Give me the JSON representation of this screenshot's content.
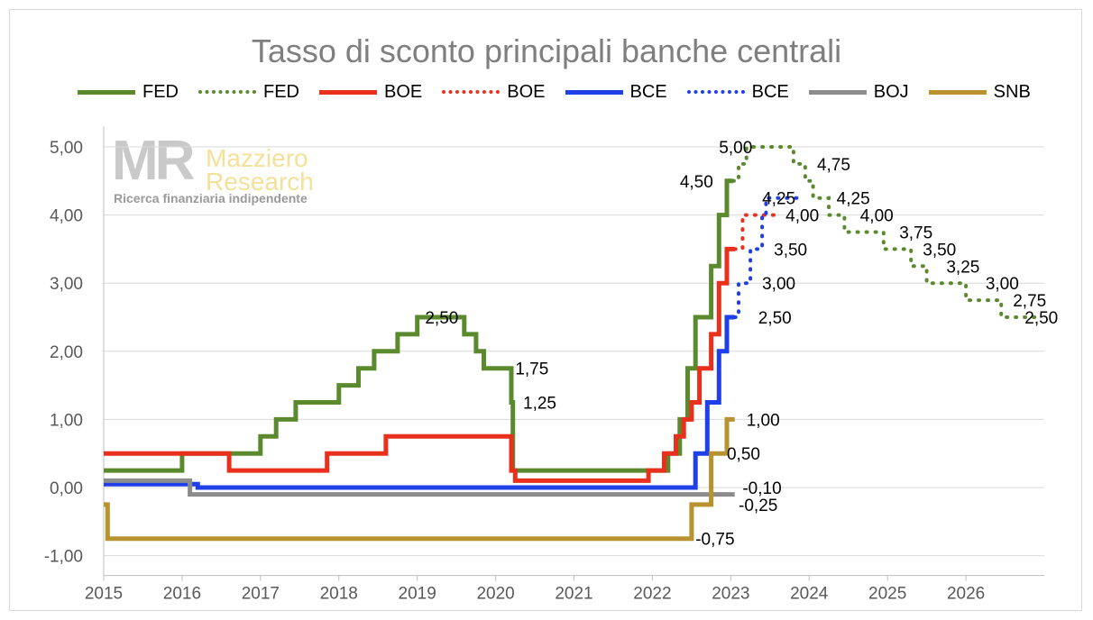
{
  "chart_data": {
    "type": "line",
    "title": "Tasso di sconto principali banche centrali",
    "xlabel": "",
    "ylabel": "",
    "xlim": [
      2015,
      2027
    ],
    "ylim": [
      -1,
      5.5
    ],
    "x_ticks": [
      "2015",
      "2016",
      "2017",
      "2018",
      "2019",
      "2020",
      "2021",
      "2022",
      "2023",
      "2024",
      "2025",
      "2026"
    ],
    "y_ticks": [
      {
        "value": -1,
        "label": "-1,00"
      },
      {
        "value": 0,
        "label": "0,00"
      },
      {
        "value": 1,
        "label": "1,00"
      },
      {
        "value": 2,
        "label": "2,00"
      },
      {
        "value": 3,
        "label": "3,00"
      },
      {
        "value": 4,
        "label": "4,00"
      },
      {
        "value": 5,
        "label": "5,00"
      }
    ],
    "grid": "horizontal",
    "legend_position": "top",
    "series": [
      {
        "name": "FED",
        "color": "#5b8a2e",
        "style": "solid",
        "step": true,
        "points": [
          [
            2015.0,
            0.25
          ],
          [
            2016.0,
            0.5
          ],
          [
            2017.0,
            0.75
          ],
          [
            2017.2,
            1.0
          ],
          [
            2017.45,
            1.25
          ],
          [
            2018.0,
            1.5
          ],
          [
            2018.25,
            1.75
          ],
          [
            2018.45,
            2.0
          ],
          [
            2018.75,
            2.25
          ],
          [
            2019.0,
            2.5
          ],
          [
            2019.6,
            2.25
          ],
          [
            2019.75,
            2.0
          ],
          [
            2019.85,
            1.75
          ],
          [
            2020.2,
            1.25
          ],
          [
            2020.22,
            0.25
          ],
          [
            2022.2,
            0.5
          ],
          [
            2022.35,
            1.0
          ],
          [
            2022.45,
            1.75
          ],
          [
            2022.55,
            2.5
          ],
          [
            2022.75,
            3.25
          ],
          [
            2022.85,
            4.0
          ],
          [
            2022.95,
            4.5
          ],
          [
            2023.03,
            4.5
          ]
        ]
      },
      {
        "name": "FED",
        "color": "#5b8a2e",
        "style": "dotted",
        "step": true,
        "points": [
          [
            2023.03,
            4.5
          ],
          [
            2023.1,
            4.75
          ],
          [
            2023.2,
            5.0
          ],
          [
            2023.8,
            4.75
          ],
          [
            2023.95,
            4.5
          ],
          [
            2024.05,
            4.25
          ],
          [
            2024.25,
            4.0
          ],
          [
            2024.45,
            3.75
          ],
          [
            2024.95,
            3.5
          ],
          [
            2025.3,
            3.25
          ],
          [
            2025.5,
            3.0
          ],
          [
            2026.0,
            2.75
          ],
          [
            2026.45,
            2.5
          ],
          [
            2026.95,
            2.5
          ]
        ]
      },
      {
        "name": "BOE",
        "color": "#e8301c",
        "style": "solid",
        "step": true,
        "points": [
          [
            2015.0,
            0.5
          ],
          [
            2016.6,
            0.25
          ],
          [
            2017.85,
            0.5
          ],
          [
            2018.6,
            0.75
          ],
          [
            2020.2,
            0.25
          ],
          [
            2020.25,
            0.1
          ],
          [
            2021.95,
            0.25
          ],
          [
            2022.15,
            0.5
          ],
          [
            2022.3,
            0.75
          ],
          [
            2022.4,
            1.0
          ],
          [
            2022.5,
            1.25
          ],
          [
            2022.6,
            1.75
          ],
          [
            2022.75,
            2.25
          ],
          [
            2022.85,
            3.0
          ],
          [
            2022.95,
            3.5
          ],
          [
            2023.05,
            3.5
          ]
        ]
      },
      {
        "name": "BOE",
        "color": "#e8301c",
        "style": "dotted",
        "step": true,
        "points": [
          [
            2023.05,
            3.5
          ],
          [
            2023.15,
            4.0
          ],
          [
            2023.65,
            4.0
          ]
        ]
      },
      {
        "name": "BCE",
        "color": "#1f3fe8",
        "style": "solid",
        "step": true,
        "points": [
          [
            2015.0,
            0.05
          ],
          [
            2016.2,
            0.0
          ],
          [
            2022.55,
            0.5
          ],
          [
            2022.7,
            1.25
          ],
          [
            2022.85,
            2.0
          ],
          [
            2022.95,
            2.5
          ],
          [
            2023.05,
            2.5
          ]
        ]
      },
      {
        "name": "BCE",
        "color": "#1f3fe8",
        "style": "dotted",
        "step": true,
        "points": [
          [
            2023.05,
            2.5
          ],
          [
            2023.1,
            3.0
          ],
          [
            2023.25,
            3.5
          ],
          [
            2023.4,
            4.0
          ],
          [
            2023.45,
            4.25
          ],
          [
            2023.9,
            4.25
          ]
        ]
      },
      {
        "name": "BOJ",
        "color": "#8c8c8c",
        "style": "solid",
        "step": true,
        "points": [
          [
            2015.0,
            0.1
          ],
          [
            2016.1,
            -0.1
          ],
          [
            2023.05,
            -0.1
          ]
        ]
      },
      {
        "name": "SNB",
        "color": "#b8922e",
        "style": "solid",
        "step": true,
        "points": [
          [
            2015.0,
            -0.25
          ],
          [
            2015.05,
            -0.75
          ],
          [
            2022.5,
            -0.25
          ],
          [
            2022.75,
            0.5
          ],
          [
            2022.95,
            1.0
          ],
          [
            2023.05,
            1.0
          ]
        ]
      }
    ],
    "annotations": [
      {
        "x": 2019.1,
        "y": 2.5,
        "text": "2,50"
      },
      {
        "x": 2020.25,
        "y": 1.75,
        "text": "1,75"
      },
      {
        "x": 2020.35,
        "y": 1.25,
        "text": "1,25"
      },
      {
        "x": 2022.35,
        "y": 4.5,
        "text": "4,50"
      },
      {
        "x": 2022.85,
        "y": 5.0,
        "text": "5,00"
      },
      {
        "x": 2024.1,
        "y": 4.75,
        "text": "4,75"
      },
      {
        "x": 2023.4,
        "y": 4.25,
        "text": "4,25"
      },
      {
        "x": 2024.35,
        "y": 4.25,
        "text": "4,25"
      },
      {
        "x": 2023.7,
        "y": 4.0,
        "text": "4,00"
      },
      {
        "x": 2024.65,
        "y": 4.0,
        "text": "4,00"
      },
      {
        "x": 2023.55,
        "y": 3.5,
        "text": "3,50"
      },
      {
        "x": 2025.15,
        "y": 3.75,
        "text": "3,75"
      },
      {
        "x": 2025.45,
        "y": 3.5,
        "text": "3,50"
      },
      {
        "x": 2025.75,
        "y": 3.25,
        "text": "3,25"
      },
      {
        "x": 2023.4,
        "y": 3.0,
        "text": "3,00"
      },
      {
        "x": 2026.25,
        "y": 3.0,
        "text": "3,00"
      },
      {
        "x": 2023.35,
        "y": 2.5,
        "text": "2,50"
      },
      {
        "x": 2026.6,
        "y": 2.75,
        "text": "2,75"
      },
      {
        "x": 2026.75,
        "y": 2.5,
        "text": "2,50"
      },
      {
        "x": 2023.2,
        "y": 1.0,
        "text": "1,00"
      },
      {
        "x": 2022.95,
        "y": 0.5,
        "text": "0,50"
      },
      {
        "x": 2023.15,
        "y": 0.0,
        "text": "-0,10"
      },
      {
        "x": 2023.1,
        "y": -0.25,
        "text": "-0,25"
      },
      {
        "x": 2022.55,
        "y": -0.75,
        "text": "-0,75"
      }
    ]
  },
  "logo": {
    "mark": "MR",
    "name_line1": "Mazziero",
    "name_line2": "Research",
    "tagline": "Ricerca finanziaria indipendente"
  }
}
